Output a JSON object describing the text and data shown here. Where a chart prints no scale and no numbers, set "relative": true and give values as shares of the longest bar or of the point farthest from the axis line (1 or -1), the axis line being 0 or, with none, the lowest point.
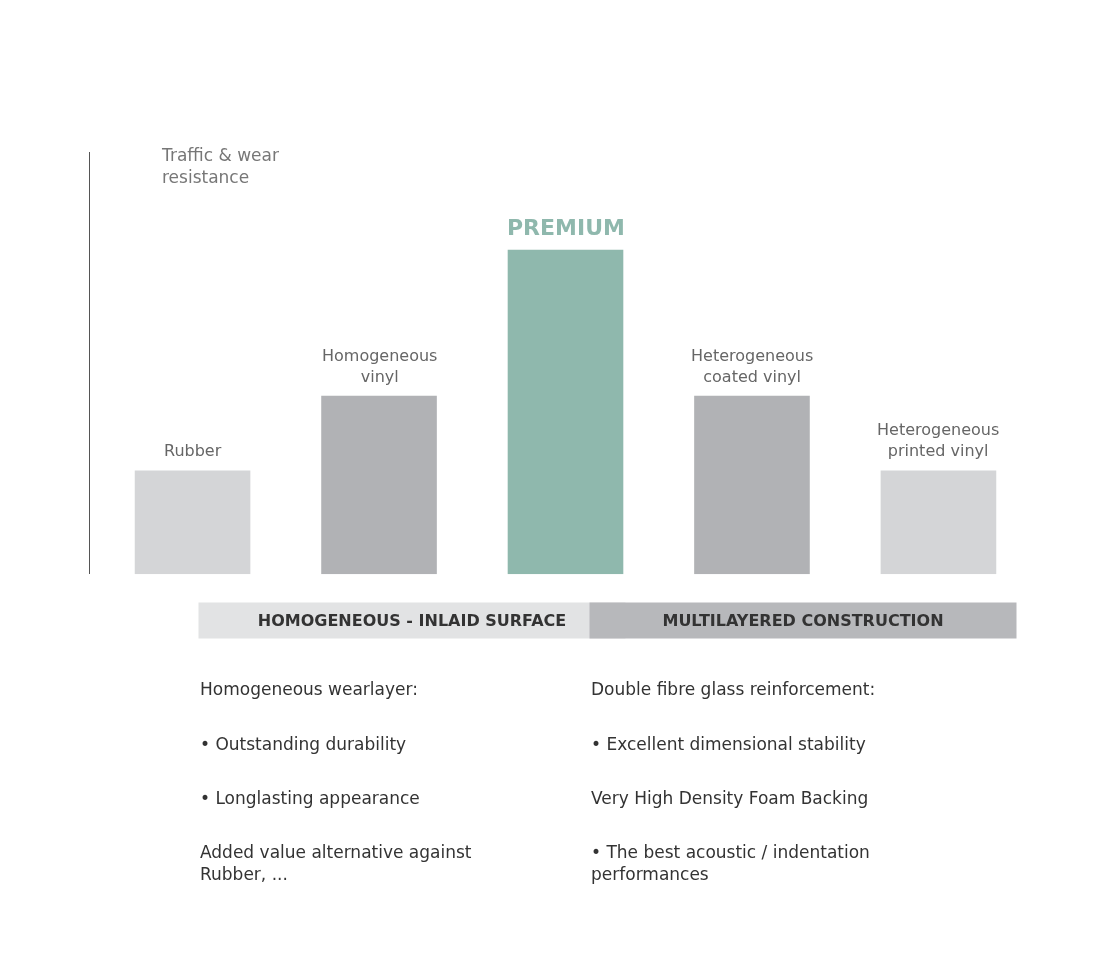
{
  "chart_data": {
    "type": "bar",
    "relative": true,
    "ylabel": "Traffic & wear resistance",
    "categories": [
      "Rubber",
      "Homogeneous vinyl",
      "PREMIUM",
      "Heterogeneous coated vinyl",
      "Heterogeneous printed vinyl"
    ],
    "values": [
      0.32,
      0.55,
      1,
      0.55,
      0.32
    ],
    "colors": [
      "#d4d5d7",
      "#b1b2b5",
      "#8fb8ad",
      "#b1b2b5",
      "#d4d5d7"
    ],
    "legend": false,
    "annotations": [
      "HOMOGENEOUS - INLAID SURFACE",
      "Homogeneous wearlayer:",
      "• Outstanding durability",
      "• Longlasting appearance",
      "Added value alternative against Rubber, ...",
      "MULTILAYERED CONSTRUCTION",
      "Double fibre glass reinforcement:",
      "• Excellent dimensional stability",
      "Very High Density Foam Backing",
      "• The best acoustic / indentation performances"
    ]
  }
}
